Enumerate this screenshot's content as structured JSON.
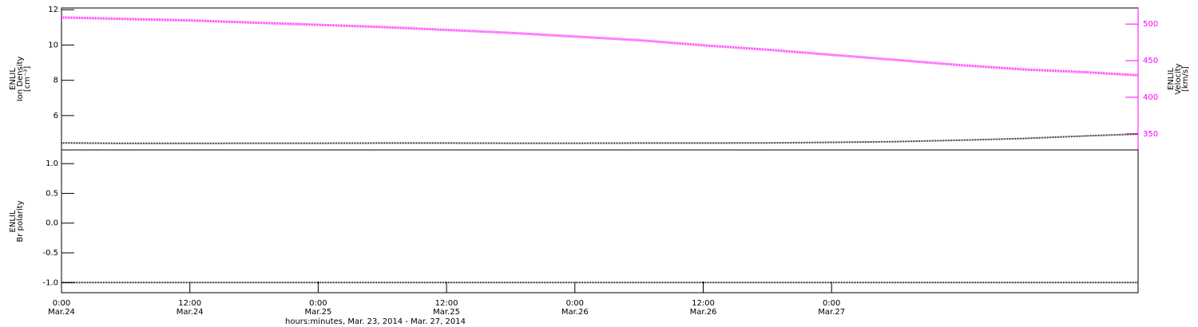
{
  "chart_data": [
    {
      "type": "line",
      "ylabel": [
        "ENLIL",
        "Ion Density",
        "[cm⁻³]"
      ],
      "y2label": [
        "ENLIL",
        "Velocity",
        "[km/s]"
      ],
      "xlim": [
        0,
        100.66
      ],
      "ylim": [
        4.05,
        12.1
      ],
      "yticks": [
        6,
        8,
        10,
        12
      ],
      "y2lim": [
        328,
        522
      ],
      "y2ticks": [
        350,
        400,
        450,
        500
      ],
      "y2color": "#ff00ff",
      "x": [
        0,
        6,
        12,
        18,
        24,
        30,
        36,
        42,
        48,
        54,
        60,
        66,
        72,
        78,
        84,
        90,
        96,
        100.66
      ],
      "series": [
        {
          "color": "#000000",
          "values": [
            4.45,
            4.42,
            4.42,
            4.43,
            4.43,
            4.44,
            4.44,
            4.43,
            4.43,
            4.44,
            4.44,
            4.45,
            4.48,
            4.52,
            4.6,
            4.7,
            4.85,
            4.95
          ]
        },
        {
          "color": "#ff00ff",
          "axis": "y2",
          "values": [
            509,
            507,
            505,
            502,
            499,
            496,
            492,
            488,
            483,
            478,
            471,
            465,
            458,
            451,
            444,
            438,
            434,
            430
          ]
        }
      ]
    },
    {
      "type": "line",
      "ylabel": [
        "ENLIL",
        "Br polarity"
      ],
      "xlim": [
        0,
        100.66
      ],
      "ylim": [
        -1.17,
        1.23
      ],
      "yticks": [
        {
          "value": 1,
          "label": "1.0"
        },
        {
          "value": 0.5,
          "label": "0.5"
        },
        {
          "value": 0,
          "label": "0.0"
        },
        {
          "value": -0.5,
          "label": "-0.5"
        },
        {
          "value": -1,
          "label": "-1.0"
        }
      ],
      "xlabel": "hours:minutes, Mar. 23, 2014 - Mar. 27, 2014",
      "xticks": [
        {
          "value": 0,
          "label": [
            "0:00",
            "Mar.24"
          ]
        },
        {
          "value": 12,
          "label": [
            "12:00",
            "Mar.24"
          ]
        },
        {
          "value": 24,
          "label": [
            "0:00",
            "Mar.25"
          ]
        },
        {
          "value": 36,
          "label": [
            "12:00",
            "Mar.25"
          ]
        },
        {
          "value": 48,
          "label": [
            "0:00",
            "Mar.26"
          ]
        },
        {
          "value": 60,
          "label": [
            "12:00",
            "Mar.26"
          ]
        },
        {
          "value": 72,
          "label": [
            "0:00",
            "Mar.27"
          ]
        }
      ],
      "x": [
        0,
        6,
        12,
        18,
        24,
        30,
        36,
        42,
        48,
        54,
        60,
        66,
        72,
        78,
        84,
        90,
        96,
        100.66
      ],
      "series": [
        {
          "color": "#000000",
          "values": [
            -1,
            -1,
            -1,
            -1,
            -1,
            -1,
            -1,
            -1,
            -1,
            -1,
            -1,
            -1,
            -1,
            -1,
            -1,
            -1,
            -1,
            -1
          ]
        }
      ]
    }
  ]
}
